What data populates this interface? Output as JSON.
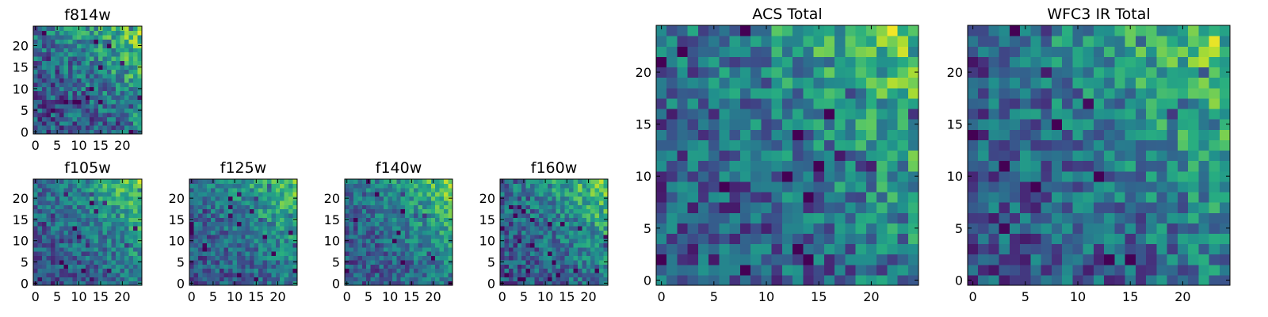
{
  "chart_data": [
    {
      "type": "heatmap",
      "title": "f814w",
      "grid_size": 25,
      "xlim": [
        0,
        24
      ],
      "ylim": [
        0,
        24
      ],
      "xticks": [
        0,
        5,
        10,
        15,
        20
      ],
      "yticks": [
        0,
        5,
        10,
        15,
        20
      ],
      "colormap": "viridis",
      "grid": false,
      "seed": 11,
      "noise": 0.3
    },
    {
      "type": "heatmap",
      "title": "f105w",
      "grid_size": 25,
      "xlim": [
        0,
        24
      ],
      "ylim": [
        0,
        24
      ],
      "xticks": [
        0,
        5,
        10,
        15,
        20
      ],
      "yticks": [
        0,
        5,
        10,
        15,
        20
      ],
      "colormap": "viridis",
      "grid": false,
      "seed": 23,
      "noise": 0.24
    },
    {
      "type": "heatmap",
      "title": "f125w",
      "grid_size": 25,
      "xlim": [
        0,
        24
      ],
      "ylim": [
        0,
        24
      ],
      "xticks": [
        0,
        5,
        10,
        15,
        20
      ],
      "yticks": [
        0,
        5,
        10,
        15,
        20
      ],
      "colormap": "viridis",
      "grid": false,
      "seed": 37,
      "noise": 0.24
    },
    {
      "type": "heatmap",
      "title": "f140w",
      "grid_size": 25,
      "xlim": [
        0,
        24
      ],
      "ylim": [
        0,
        24
      ],
      "xticks": [
        0,
        5,
        10,
        15,
        20
      ],
      "yticks": [
        0,
        5,
        10,
        15,
        20
      ],
      "colormap": "viridis",
      "grid": false,
      "seed": 41,
      "noise": 0.24
    },
    {
      "type": "heatmap",
      "title": "f160w",
      "grid_size": 25,
      "xlim": [
        0,
        24
      ],
      "ylim": [
        0,
        24
      ],
      "xticks": [
        0,
        5,
        10,
        15,
        20
      ],
      "yticks": [
        0,
        5,
        10,
        15,
        20
      ],
      "colormap": "viridis",
      "grid": false,
      "seed": 53,
      "noise": 0.26
    },
    {
      "type": "heatmap",
      "title": "ACS Total",
      "grid_size": 25,
      "xlim": [
        0,
        24
      ],
      "ylim": [
        0,
        24
      ],
      "xticks": [
        0,
        5,
        10,
        15,
        20
      ],
      "yticks": [
        0,
        5,
        10,
        15,
        20
      ],
      "colormap": "viridis",
      "grid": false,
      "seed": 67,
      "noise": 0.3
    },
    {
      "type": "heatmap",
      "title": "WFC3 IR Total",
      "grid_size": 25,
      "xlim": [
        0,
        24
      ],
      "ylim": [
        0,
        24
      ],
      "xticks": [
        0,
        5,
        10,
        15,
        20
      ],
      "yticks": [
        0,
        5,
        10,
        15,
        20
      ],
      "colormap": "viridis",
      "grid": false,
      "seed": 79,
      "noise": 0.28
    }
  ]
}
